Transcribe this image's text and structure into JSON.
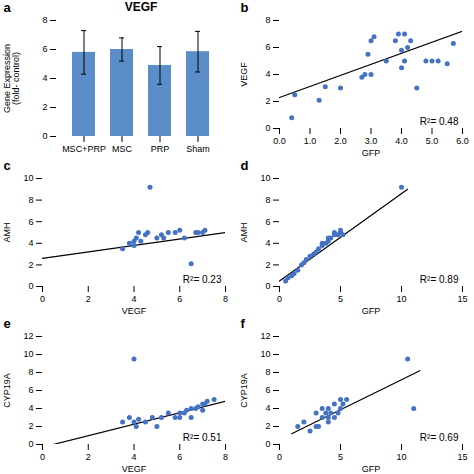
{
  "chart_data": [
    {
      "type": "bar",
      "title": "VEGF",
      "annotations": [
        "a"
      ],
      "categories": [
        "MSC+PRP",
        "MSC",
        "PRP",
        "Sham"
      ],
      "values": [
        5.8,
        6.0,
        4.9,
        5.85
      ],
      "errors": [
        1.5,
        0.8,
        1.3,
        1.4
      ],
      "color": "#5B8EC9",
      "ylabel": "Gene Expression\n(fold- control)",
      "ylim": [
        0,
        8
      ],
      "yticks": [
        0,
        2,
        4,
        6,
        8
      ]
    },
    {
      "type": "scatter",
      "annotations": [
        "b",
        "R²= 0.48"
      ],
      "xlabel": "GFP",
      "ylabel": "VEGF",
      "xlim": [
        0,
        6
      ],
      "ylim": [
        0,
        8
      ],
      "xticks": [
        0,
        1,
        2,
        3,
        4,
        5,
        6
      ],
      "yticks": [
        0,
        2,
        4,
        6,
        8
      ],
      "x": [
        0.4,
        0.5,
        1.3,
        1.5,
        2.0,
        2.7,
        2.8,
        2.9,
        3.0,
        3.0,
        3.1,
        3.5,
        3.8,
        3.9,
        4.0,
        4.0,
        4.1,
        4.1,
        4.2,
        4.3,
        4.5,
        4.8,
        5.0,
        5.2,
        5.5,
        5.7
      ],
      "values": [
        0.8,
        2.5,
        2.1,
        3.1,
        3.0,
        3.8,
        4.0,
        5.5,
        6.5,
        4.0,
        6.8,
        5.0,
        6.5,
        7.0,
        4.5,
        5.8,
        5.0,
        7.0,
        6.0,
        6.5,
        3.0,
        5.0,
        5.0,
        5.0,
        4.8,
        6.3
      ],
      "color": "#4472C4",
      "line": {
        "x": [
          0.0,
          6.0
        ],
        "y": [
          2.3,
          7.2
        ],
        "color": "black"
      }
    },
    {
      "type": "scatter",
      "annotations": [
        "c",
        "R²= 0.23"
      ],
      "xlabel": "VEGF",
      "ylabel": "AMH",
      "xlim": [
        0,
        8
      ],
      "ylim": [
        0,
        10
      ],
      "xticks": [
        0,
        2,
        4,
        6,
        8
      ],
      "yticks": [
        0,
        2,
        4,
        6,
        8,
        10
      ],
      "x": [
        3.5,
        3.8,
        4.0,
        4.0,
        4.1,
        4.2,
        4.3,
        4.5,
        4.6,
        4.7,
        5.0,
        5.2,
        5.3,
        5.5,
        5.8,
        6.0,
        6.2,
        6.5,
        6.7,
        6.8,
        7.0,
        7.1
      ],
      "values": [
        3.5,
        4.0,
        3.8,
        4.2,
        4.5,
        5.0,
        4.2,
        4.8,
        5.0,
        9.2,
        4.5,
        4.8,
        4.5,
        5.0,
        5.0,
        5.2,
        4.5,
        2.1,
        5.0,
        5.0,
        5.0,
        5.2
      ],
      "color": "#4472C4",
      "line": {
        "x": [
          0,
          8
        ],
        "y": [
          2.6,
          5.0
        ],
        "color": "black"
      }
    },
    {
      "type": "scatter",
      "annotations": [
        "d",
        "R²= 0.89"
      ],
      "xlabel": "GFP",
      "ylabel": "AMH",
      "xlim": [
        0,
        15
      ],
      "ylim": [
        0,
        10
      ],
      "xticks": [
        0,
        5,
        10,
        15
      ],
      "yticks": [
        0,
        2,
        4,
        6,
        8,
        10
      ],
      "x": [
        0.5,
        0.7,
        1.0,
        1.2,
        1.5,
        1.8,
        2.0,
        2.2,
        2.5,
        2.8,
        3.0,
        3.2,
        3.5,
        3.5,
        3.8,
        4.0,
        4.0,
        4.2,
        4.5,
        4.5,
        4.8,
        5.0,
        5.0,
        5.2,
        10.0
      ],
      "values": [
        0.5,
        0.8,
        1.0,
        1.2,
        1.5,
        2.0,
        2.2,
        2.5,
        2.8,
        3.0,
        3.2,
        3.5,
        3.8,
        4.0,
        4.0,
        4.2,
        4.5,
        4.5,
        4.8,
        5.0,
        4.8,
        5.0,
        5.2,
        4.8,
        9.2
      ],
      "color": "#4472C4",
      "line": {
        "x": [
          0,
          10.5
        ],
        "y": [
          0.5,
          9.0
        ],
        "color": "black"
      }
    },
    {
      "type": "scatter",
      "annotations": [
        "e",
        "R²= 0.51"
      ],
      "xlabel": "VEGF",
      "ylabel": "CYP19A",
      "xlim": [
        0,
        8
      ],
      "ylim": [
        0,
        12
      ],
      "xticks": [
        0,
        2,
        4,
        6,
        8
      ],
      "yticks": [
        0,
        2,
        4,
        6,
        8,
        10,
        12
      ],
      "x": [
        3.5,
        3.8,
        4.0,
        4.0,
        4.1,
        4.2,
        4.5,
        4.8,
        5.0,
        5.2,
        5.5,
        5.8,
        6.0,
        6.0,
        6.2,
        6.3,
        6.5,
        6.5,
        6.7,
        6.8,
        7.0,
        7.0,
        7.1,
        7.2,
        7.5
      ],
      "values": [
        2.5,
        3.0,
        9.5,
        2.5,
        2.0,
        2.8,
        2.5,
        3.0,
        2.0,
        3.0,
        3.5,
        3.0,
        3.0,
        3.5,
        3.5,
        3.8,
        4.0,
        3.0,
        4.0,
        4.2,
        4.5,
        3.8,
        4.5,
        4.8,
        5.0
      ],
      "color": "#4472C4",
      "line": {
        "x": [
          0,
          8
        ],
        "y": [
          -0.3,
          4.8
        ],
        "color": "black"
      }
    },
    {
      "type": "scatter",
      "annotations": [
        "f",
        "R²= 0.69"
      ],
      "xlabel": "GFP",
      "ylabel": "CYP19A",
      "xlim": [
        0,
        15
      ],
      "ylim": [
        0,
        12
      ],
      "xticks": [
        0,
        5,
        10,
        15
      ],
      "yticks": [
        0,
        2,
        4,
        6,
        8,
        10,
        12
      ],
      "x": [
        1.5,
        2.0,
        2.5,
        3.0,
        3.0,
        3.2,
        3.5,
        3.5,
        3.8,
        4.0,
        4.0,
        4.0,
        4.2,
        4.5,
        4.5,
        4.8,
        5.0,
        5.0,
        5.2,
        5.5,
        10.5,
        11.0
      ],
      "values": [
        2.0,
        2.5,
        1.5,
        2.0,
        3.5,
        2.0,
        3.0,
        4.0,
        3.5,
        2.5,
        3.0,
        4.0,
        3.5,
        3.0,
        4.5,
        3.5,
        4.0,
        5.0,
        4.5,
        5.0,
        9.5,
        4.0
      ],
      "color": "#4472C4",
      "line": {
        "x": [
          1.0,
          11.5
        ],
        "y": [
          1.2,
          8.2
        ],
        "color": "black"
      }
    }
  ]
}
